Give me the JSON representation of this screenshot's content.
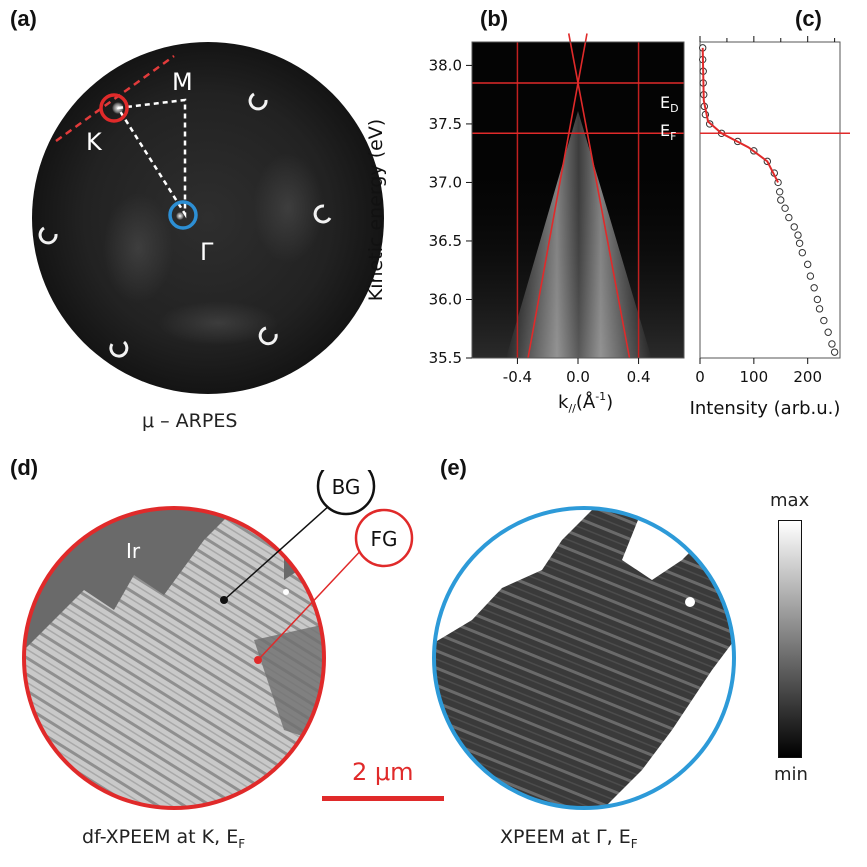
{
  "panels": {
    "a": {
      "letter": "(a)",
      "label_M": "M",
      "label_K": "K",
      "label_Gamma": "Γ",
      "caption": "μ – ARPES"
    },
    "b": {
      "letter": "(b)",
      "label_ED": "E",
      "label_ED_sub": "D",
      "label_EF": "E",
      "label_EF_sub": "F"
    },
    "c": {
      "letter": "(c)"
    },
    "d": {
      "letter": "(d)",
      "label_Ir": "Ir",
      "bubble_BG": "BG",
      "bubble_FG": "FG",
      "caption_main": "df-XPEEM at K, E",
      "caption_sub": "F"
    },
    "e": {
      "letter": "(e)",
      "caption_main": "XPEEM at Γ, E",
      "caption_sub": "F",
      "colorbar_max": "max",
      "colorbar_min": "min"
    },
    "scalebar": {
      "label": "2 μm"
    }
  },
  "chart_data": [
    {
      "type": "heatmap",
      "panel": "b",
      "ylabel": "Kinetic energy (eV)",
      "xlabel_main": "k",
      "xlabel_sub": "//",
      "xlabel_unit": "(Å",
      "xlabel_exp": "-1",
      "xlabel_close": ")",
      "xlim": [
        -0.7,
        0.7
      ],
      "ylim": [
        35.5,
        38.2
      ],
      "x_ticks": [
        "-0.4",
        "0.0",
        "0.4"
      ],
      "x_tick_values": [
        -0.4,
        0.0,
        0.4
      ],
      "y_ticks": [
        "35.5",
        "36.0",
        "36.5",
        "37.0",
        "37.5",
        "38.0"
      ],
      "y_tick_values": [
        35.5,
        36.0,
        36.5,
        37.0,
        37.5,
        38.0
      ],
      "E_D": 37.85,
      "E_F": 37.42,
      "vertical_lines_k": [
        -0.4,
        0.4
      ],
      "dirac_cone": {
        "apex_k": 0.0,
        "apex_E": 37.85,
        "bottom_k": [
          -0.33,
          0.34
        ],
        "bottom_E": 35.5
      }
    },
    {
      "type": "scatter",
      "panel": "c",
      "xlabel": "Intensity (arb.u.)",
      "xlim": [
        0,
        260
      ],
      "ylim": [
        35.5,
        38.2
      ],
      "x_ticks": [
        "0",
        "100",
        "200"
      ],
      "x_tick_values": [
        0,
        100,
        200
      ],
      "E_F": 37.42,
      "points": [
        [
          5,
          38.15
        ],
        [
          5,
          38.05
        ],
        [
          6,
          37.95
        ],
        [
          6,
          37.85
        ],
        [
          7,
          37.75
        ],
        [
          8,
          37.65
        ],
        [
          10,
          37.58
        ],
        [
          18,
          37.5
        ],
        [
          40,
          37.42
        ],
        [
          70,
          37.35
        ],
        [
          100,
          37.27
        ],
        [
          125,
          37.18
        ],
        [
          138,
          37.08
        ],
        [
          145,
          37.0
        ],
        [
          148,
          36.92
        ],
        [
          150,
          36.85
        ],
        [
          158,
          36.78
        ],
        [
          165,
          36.7
        ],
        [
          175,
          36.62
        ],
        [
          182,
          36.55
        ],
        [
          185,
          36.48
        ],
        [
          190,
          36.4
        ],
        [
          200,
          36.3
        ],
        [
          205,
          36.2
        ],
        [
          212,
          36.1
        ],
        [
          218,
          36.0
        ],
        [
          222,
          35.92
        ],
        [
          230,
          35.82
        ],
        [
          238,
          35.72
        ],
        [
          245,
          35.62
        ],
        [
          250,
          35.55
        ]
      ],
      "fit_curve": [
        [
          5,
          38.15
        ],
        [
          7,
          37.7
        ],
        [
          15,
          37.52
        ],
        [
          40,
          37.42
        ],
        [
          90,
          37.3
        ],
        [
          125,
          37.18
        ],
        [
          145,
          37.0
        ]
      ]
    }
  ]
}
